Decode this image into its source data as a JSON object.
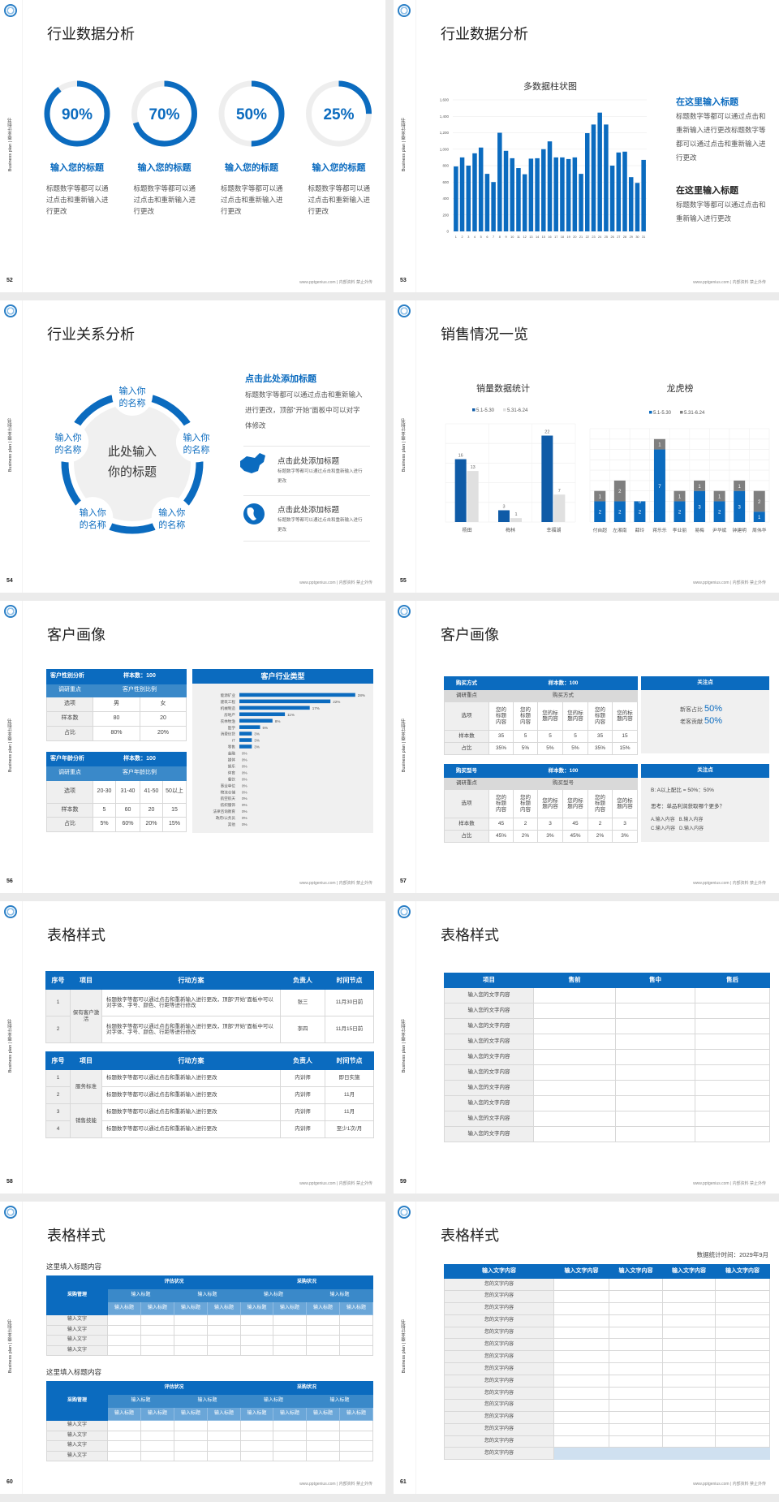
{
  "common": {
    "sidebar_text": "Business plan | 商业计划书",
    "footer": "www.pptgenius.com | 内部资料 禁止外传"
  },
  "colors": {
    "primary": "#0b6bbf",
    "mid": "#3a89c9",
    "light": "#6aa6d8",
    "grey": "#efefef",
    "dark_bar": "#0f5ba7",
    "grey_bar": "#7f7f7f"
  },
  "slides": [
    {
      "page": "52",
      "title": "行业数据分析",
      "donuts": [
        {
          "value": "90%",
          "pct": 90,
          "label": "输入您的标题",
          "desc": "标题数字等都可以通过点击和重新输入进行更改"
        },
        {
          "value": "70%",
          "pct": 70,
          "label": "输入您的标题",
          "desc": "标题数字等都可以通过点击和重新输入进行更改"
        },
        {
          "value": "50%",
          "pct": 50,
          "label": "输入您的标题",
          "desc": "标题数字等都可以通过点击和重新输入进行更改"
        },
        {
          "value": "25%",
          "pct": 25,
          "label": "输入您的标题",
          "desc": "标题数字等都可以通过点击和重新输入进行更改"
        }
      ]
    },
    {
      "page": "53",
      "title": "行业数据分析",
      "chart_data": {
        "type": "bar",
        "title": "多数据柱状图",
        "ylim": [
          0,
          1600
        ],
        "yticks": [
          0,
          200,
          400,
          600,
          800,
          1000,
          1200,
          1400,
          1600
        ],
        "ytick_labels": [
          "0",
          "200",
          "400",
          "600",
          "800",
          "1,000",
          "1,200",
          "1,400",
          "1,600"
        ],
        "categories": [
          "1",
          "2",
          "3",
          "4",
          "5",
          "6",
          "7",
          "8",
          "9",
          "10",
          "11",
          "12",
          "13",
          "14",
          "15",
          "16",
          "17",
          "18",
          "19",
          "20",
          "21",
          "22",
          "23",
          "24",
          "25",
          "26",
          "27",
          "28",
          "29",
          "30",
          "31"
        ],
        "values": [
          790,
          900,
          800,
          950,
          1020,
          700,
          600,
          1200,
          980,
          890,
          770,
          695,
          885,
          890,
          1000,
          1095,
          900,
          900,
          880,
          900,
          700,
          1195,
          1300,
          1445,
          1300,
          800,
          960,
          970,
          660,
          590,
          870
        ],
        "grid": true
      },
      "side": [
        {
          "heading": "在这里输入标题",
          "body": "标题数字等都可以通过点击和重新输入进行更改标题数字等都可以通过点击和重新输入进行更改"
        },
        {
          "heading": "在这里输入标题",
          "body": "标题数字等都可以通过点击和重新输入进行更改"
        }
      ]
    },
    {
      "page": "54",
      "title": "行业关系分析",
      "center": [
        "此处输入",
        "你的标题"
      ],
      "nodes": [
        [
          "输入你",
          "的名称"
        ],
        [
          "输入你",
          "的名称"
        ],
        [
          "输入你",
          "的名称"
        ],
        [
          "输入你",
          "的名称"
        ],
        [
          "输入你",
          "的名称"
        ]
      ],
      "heading": "点击此处添加标题",
      "body": "标题数字等都可以通过点击和重新输入进行更改，顶部“开始”面板中可以对字体修改",
      "items": [
        {
          "icon": "china-map-icon",
          "title": "点击此处添加标题",
          "text": "标题数字等都可以通过点击和重新输入进行更改"
        },
        {
          "icon": "globe-icon",
          "title": "点击此处添加标题",
          "text": "标题数字等都可以通过点击和重新输入进行更改"
        }
      ]
    },
    {
      "page": "55",
      "title": "销售情况一览",
      "chart_data": [
        {
          "type": "bar",
          "title": "销量数据统计",
          "categories": [
            "杨田",
            "梅林",
            "幸福湖"
          ],
          "ylim": [
            0,
            25
          ],
          "grid": true,
          "legend": "top",
          "series": [
            {
              "name": "5.1-5.30",
              "values": [
                16,
                3,
                22
              ],
              "color": "#0f5ba7"
            },
            {
              "name": "5.31-6.24",
              "values": [
                13,
                1,
                7
              ],
              "color": "#e0e0e0"
            }
          ]
        },
        {
          "type": "bar",
          "stacked": true,
          "title": "龙虎榜",
          "categories": [
            "付自超",
            "左湘南",
            "薛玲",
            "蒋乐乐",
            "李业丽",
            "易梅",
            "尹华斌",
            "钟建明",
            "周伟华"
          ],
          "ylim": [
            0,
            9
          ],
          "grid": true,
          "legend": "top",
          "series": [
            {
              "name": "5.1-5.30",
              "values": [
                2,
                2,
                2,
                7,
                2,
                3,
                2,
                3,
                1
              ],
              "color": "#0b6bbf"
            },
            {
              "name": "5.31-6.24",
              "values": [
                1,
                2,
                0,
                1,
                1,
                1,
                1,
                1,
                2
              ],
              "color": "#7f7f7f"
            }
          ]
        }
      ]
    },
    {
      "page": "56",
      "title": "客户画像",
      "gender": {
        "header": [
          "客户性别分析",
          "样本数：100"
        ],
        "sub": [
          "调研重点",
          "客户性别比例"
        ],
        "rows": [
          [
            "选项",
            "男",
            "女"
          ],
          [
            "样本数",
            "80",
            "20"
          ],
          [
            "占比",
            "80%",
            "20%"
          ]
        ]
      },
      "age": {
        "header": [
          "客户年龄分析",
          "样本数：100"
        ],
        "sub": [
          "调研重点",
          "客户年龄比例"
        ],
        "rows": [
          [
            "选项",
            "20-30",
            "31-40",
            "41-50",
            "50以上"
          ],
          [
            "样本数",
            "5",
            "60",
            "20",
            "15"
          ],
          [
            "占比",
            "5%",
            "60%",
            "20%",
            "15%"
          ]
        ]
      },
      "chart_data": {
        "type": "bar",
        "orientation": "horizontal",
        "title": "客户行业类型",
        "categories": [
          "能源矿业",
          "建筑工程",
          "机械制造",
          "房地产",
          "农林牧渔",
          "医学",
          "消费信贷",
          "IT",
          "零售",
          "金融",
          "媒体",
          "娱乐",
          "体育",
          "餐饮",
          "事业单位",
          "物流仓储",
          "航空航天",
          "纺织服饰",
          "法律咨询教育",
          "政府/公务员",
          "其他"
        ],
        "values": [
          28,
          22,
          17,
          11,
          8,
          5,
          3,
          3,
          3,
          0,
          0,
          0,
          0,
          0,
          0,
          0,
          0,
          0,
          0,
          0,
          0
        ],
        "labels": [
          "28%",
          "22%",
          "17%",
          "11%",
          "8%",
          "5%",
          "3%",
          "3%",
          "3%",
          "0%",
          "0%",
          "0%",
          "0%",
          "0%",
          "0%",
          "0%",
          "0%",
          "0%",
          "0%",
          "0%",
          "0%"
        ]
      }
    },
    {
      "page": "57",
      "title": "客户画像",
      "t1": {
        "header": [
          "购买方式",
          "样本数：100"
        ],
        "sub": [
          "调研重点",
          "购买方式"
        ],
        "options_label": "选项",
        "option": "您的标题内容",
        "rows": [
          [
            "样本数",
            "35",
            "5",
            "5",
            "5",
            "35",
            "15"
          ],
          [
            "占比",
            "35%",
            "5%",
            "5%",
            "5%",
            "35%",
            "15%"
          ]
        ]
      },
      "t2": {
        "header": [
          "购买型号",
          "样本数：100"
        ],
        "sub": [
          "调研重点",
          "购买型号"
        ],
        "options_label": "选项",
        "option": "您的标题内容",
        "rows": [
          [
            "样本数",
            "45",
            "2",
            "3",
            "45",
            "2",
            "3"
          ],
          [
            "占比",
            "45%",
            "2%",
            "3%",
            "45%",
            "2%",
            "3%"
          ]
        ]
      },
      "p1": {
        "header": "关注点",
        "lines": [
          [
            "新客占比",
            "50%"
          ],
          [
            "老客贡献",
            "50%"
          ]
        ]
      },
      "p2": {
        "header": "关注点",
        "ratio": "B: A以上配比 = 50%：50%",
        "question": "思考：单品利润获取哪个更多？",
        "opts": [
          "A.输入内容   B.输入内容",
          "C.输入内容   D.输入内容"
        ]
      }
    },
    {
      "page": "58",
      "title": "表格样式",
      "headers": [
        "序号",
        "项目",
        "行动方案",
        "负责人",
        "时间节点"
      ],
      "t1": {
        "group": "保有客户激活",
        "rows": [
          [
            "1",
            "标题数字等都可以通过点击和重新输入进行更改，顶部“开始”面板中可以对字体、字号、颜色、行距等进行修改",
            "张三",
            "11月30日前"
          ],
          [
            "2",
            "标题数字等都可以通过点击和重新输入进行更改，顶部“开始”面板中可以对字体、字号、颜色、行距等进行修改",
            "李四",
            "11月15日前"
          ]
        ]
      },
      "t2": {
        "groups": [
          "服务标准",
          "销售技能"
        ],
        "rows": [
          [
            "1",
            "标题数字等都可以通过点击和重新输入进行更改",
            "内训师",
            "即日实施"
          ],
          [
            "2",
            "标题数字等都可以通过点击和重新输入进行更改",
            "内训师",
            "11月"
          ],
          [
            "3",
            "标题数字等都可以通过点击和重新输入进行更改",
            "内训师",
            "11月"
          ],
          [
            "4",
            "标题数字等都可以通过点击和重新输入进行更改",
            "内训师",
            "至少1次/月"
          ]
        ]
      }
    },
    {
      "page": "59",
      "title": "表格样式",
      "headers": [
        "项目",
        "售前",
        "售中",
        "售后"
      ],
      "rows": [
        "输入您的文字内容",
        "输入您的文字内容",
        "输入您的文字内容",
        "输入您的文字内容",
        "输入您的文字内容",
        "输入您的文字内容",
        "输入您的文字内容",
        "输入您的文字内容",
        "输入您的文字内容",
        "输入您的文字内容"
      ]
    },
    {
      "page": "60",
      "title": "表格样式",
      "tables": [
        {
          "subtitle": "这里填入标题内容",
          "corner": "采购管理",
          "groups": [
            "评估状况",
            "采购状况"
          ],
          "sub": "输入标题",
          "subsub": "输入标题",
          "rows": [
            "输入文字",
            "输入文字",
            "输入文字",
            "输入文字"
          ]
        },
        {
          "subtitle": "这里填入标题内容",
          "corner": "采购管理",
          "groups": [
            "评估状况",
            "采购状况"
          ],
          "sub": "输入标题",
          "subsub": "输入标题",
          "rows": [
            "输入文字",
            "输入文字",
            "输入文字",
            "输入文字"
          ]
        }
      ]
    },
    {
      "page": "61",
      "title": "表格样式",
      "date": "数据统计时间：2029年9月",
      "headers": [
        "输入文字内容",
        "输入文字内容",
        "输入文字内容",
        "输入文字内容",
        "输入文字内容"
      ],
      "rows": [
        "您的文字内容",
        "您的文字内容",
        "您的文字内容",
        "您的文字内容",
        "您的文字内容",
        "您的文字内容",
        "您的文字内容",
        "您的文字内容",
        "您的文字内容",
        "您的文字内容",
        "您的文字内容",
        "您的文字内容",
        "您的文字内容",
        "您的文字内容",
        "您的文字内容"
      ]
    }
  ]
}
